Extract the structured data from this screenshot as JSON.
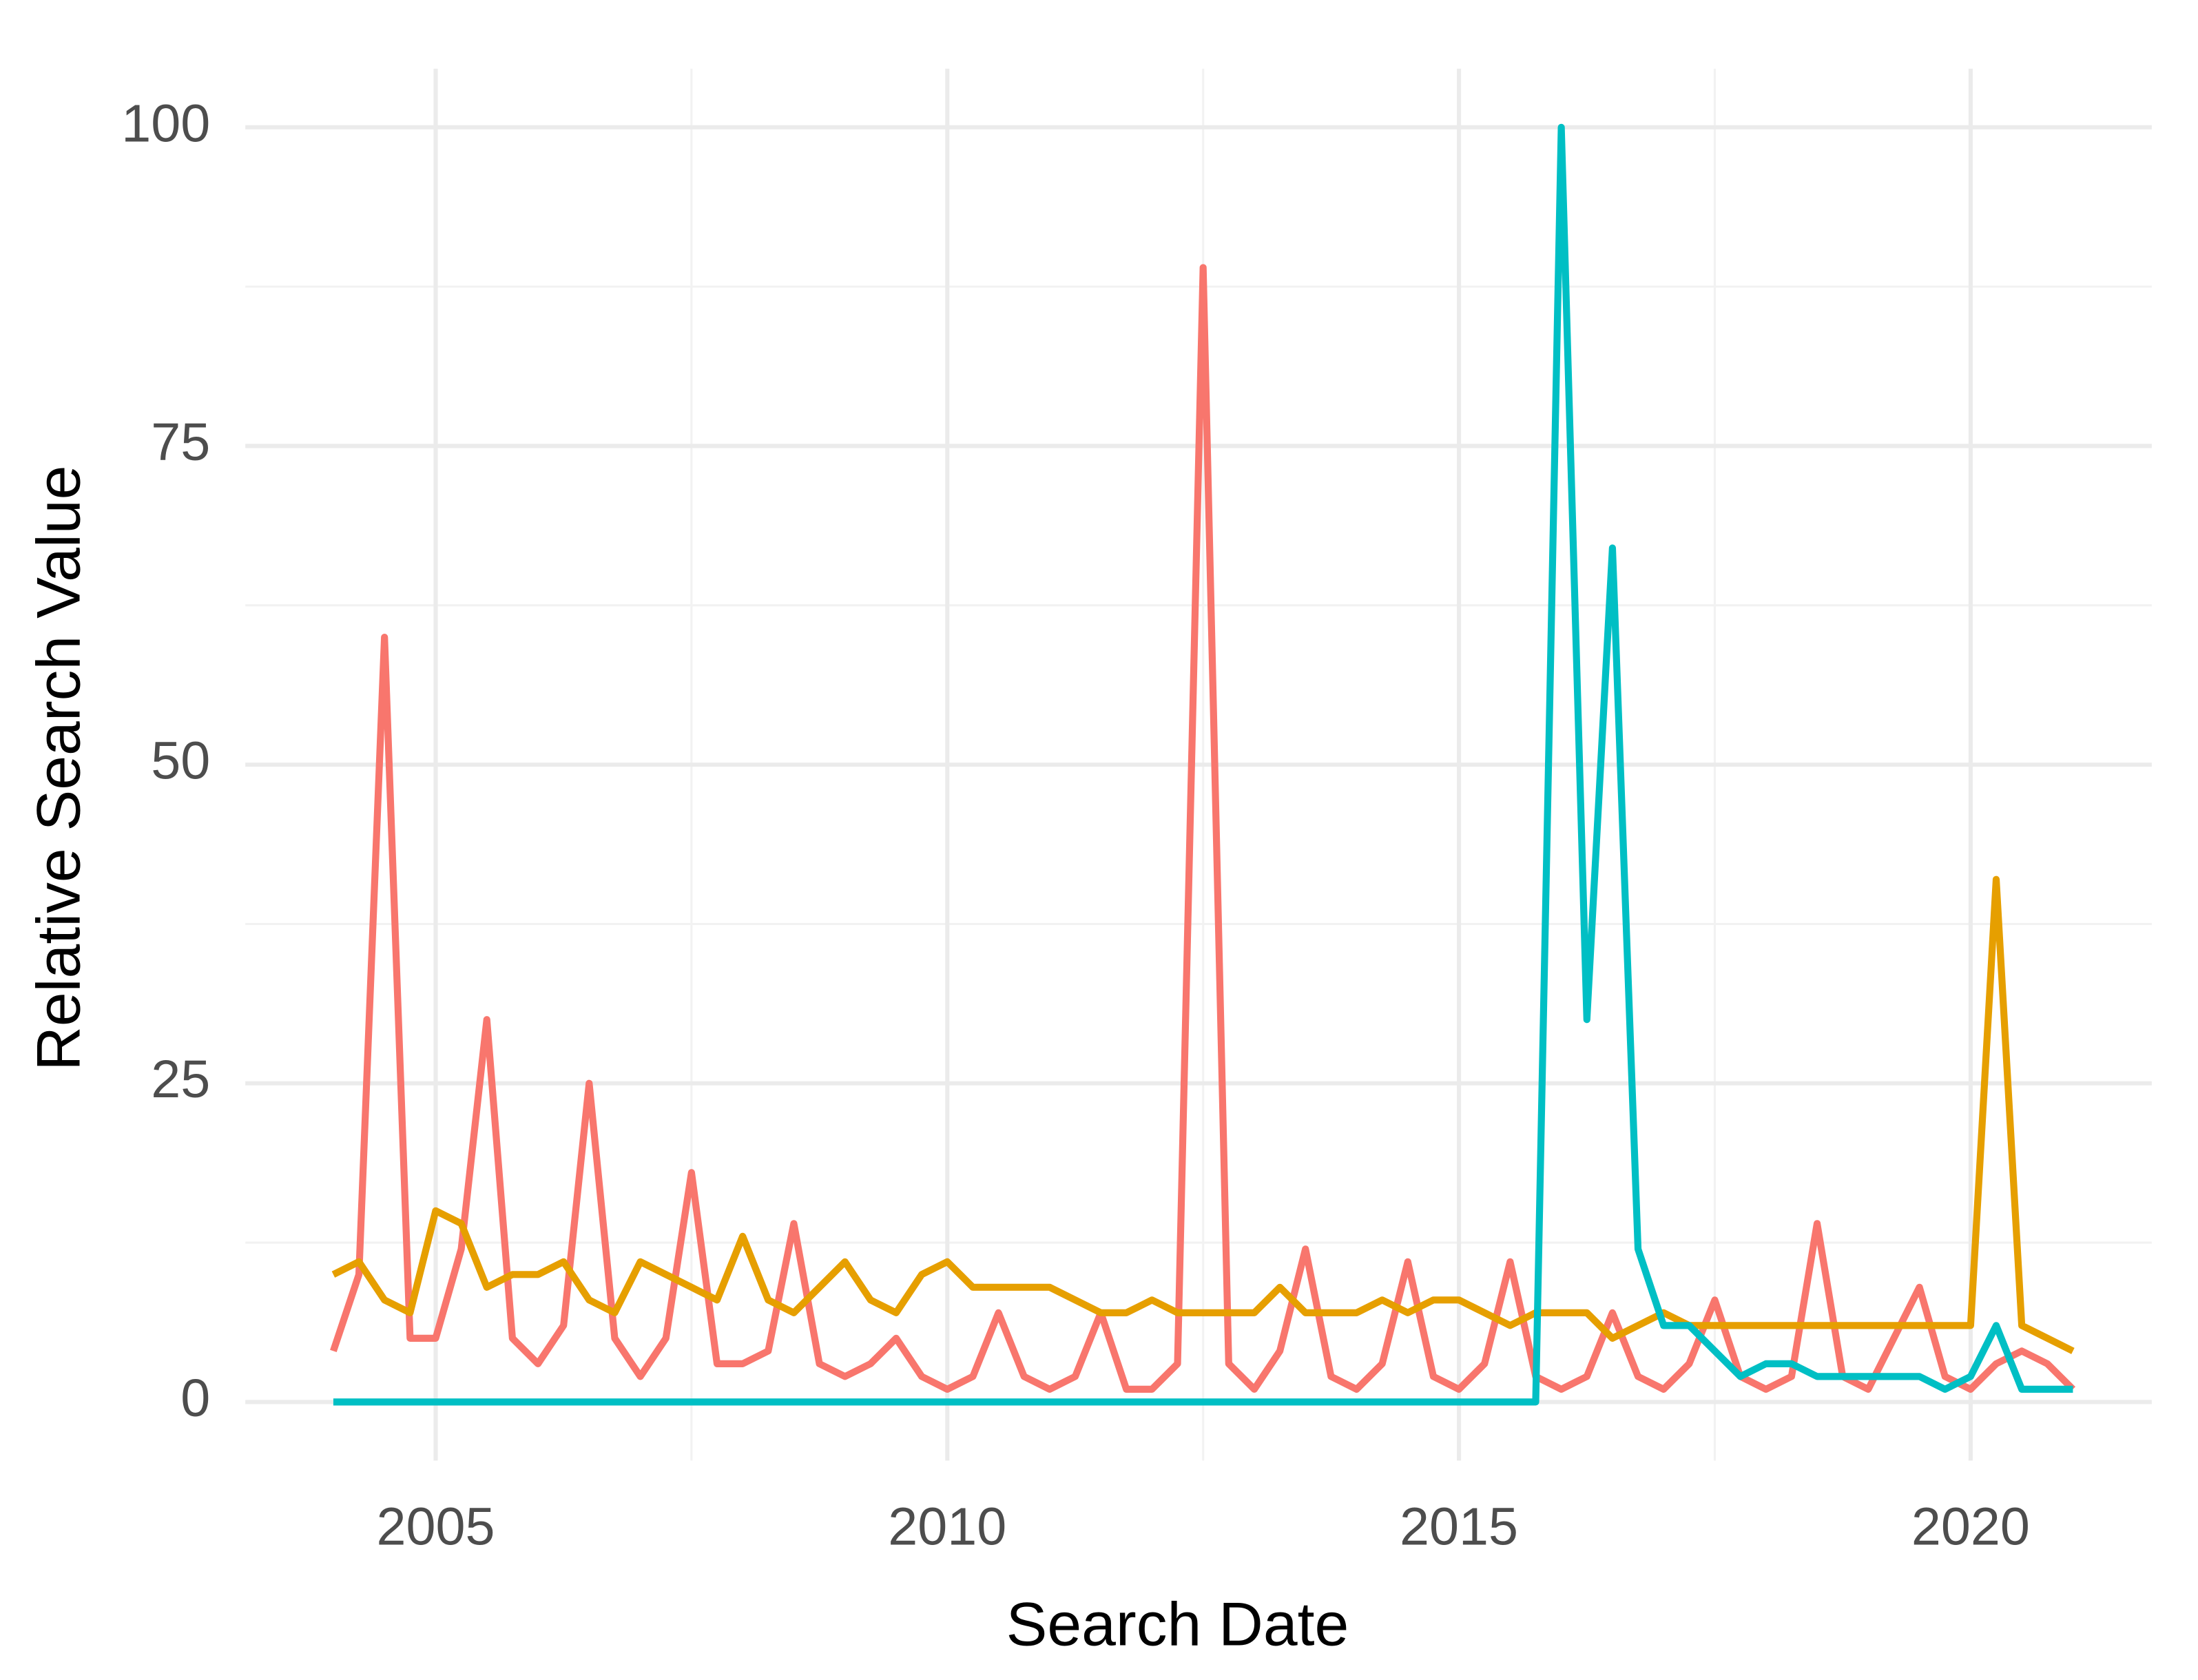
{
  "chart_data": {
    "type": "line",
    "x_label": "Search Date",
    "y_label": "Relative Search Value",
    "x": [
      2004,
      2004.25,
      2004.5,
      2004.75,
      2005,
      2005.25,
      2005.5,
      2005.75,
      2006,
      2006.25,
      2006.5,
      2006.75,
      2007,
      2007.25,
      2007.5,
      2007.75,
      2008,
      2008.25,
      2008.5,
      2008.75,
      2009,
      2009.25,
      2009.5,
      2009.75,
      2010,
      2010.25,
      2010.5,
      2010.75,
      2011,
      2011.25,
      2011.5,
      2011.75,
      2012,
      2012.25,
      2012.5,
      2012.75,
      2013,
      2013.25,
      2013.5,
      2013.75,
      2014,
      2014.25,
      2014.5,
      2014.75,
      2015,
      2015.25,
      2015.5,
      2015.75,
      2016,
      2016.25,
      2016.5,
      2016.75,
      2017,
      2017.25,
      2017.5,
      2017.75,
      2018,
      2018.25,
      2018.5,
      2018.75,
      2019,
      2019.25,
      2019.5,
      2019.75,
      2020,
      2020.25,
      2020.5,
      2020.75,
      2021
    ],
    "series": [
      {
        "color": "#f8766d",
        "values": [
          4,
          10,
          60,
          5,
          5,
          12,
          30,
          5,
          3,
          6,
          25,
          5,
          2,
          5,
          18,
          3,
          3,
          4,
          14,
          3,
          2,
          3,
          5,
          2,
          1,
          2,
          7,
          2,
          1,
          2,
          7,
          1,
          1,
          3,
          89,
          3,
          1,
          4,
          12,
          2,
          1,
          3,
          11,
          2,
          1,
          3,
          11,
          2,
          1,
          2,
          7,
          2,
          1,
          3,
          8,
          2,
          1,
          2,
          14,
          2,
          1,
          5,
          9,
          2,
          1,
          3,
          4,
          3,
          1
        ]
      },
      {
        "color": "#e69f00",
        "values": [
          10,
          11,
          8,
          7,
          15,
          14,
          9,
          10,
          10,
          11,
          8,
          7,
          11,
          10,
          9,
          8,
          13,
          8,
          7,
          9,
          11,
          8,
          7,
          10,
          11,
          9,
          9,
          9,
          9,
          8,
          7,
          7,
          8,
          7,
          7,
          7,
          7,
          9,
          7,
          7,
          7,
          8,
          7,
          8,
          8,
          7,
          6,
          7,
          7,
          7,
          5,
          6,
          7,
          6,
          6,
          6,
          6,
          6,
          6,
          6,
          6,
          6,
          6,
          6,
          6,
          41,
          6,
          5,
          4
        ]
      },
      {
        "color": "#00bfc4",
        "values": [
          0,
          0,
          0,
          0,
          0,
          0,
          0,
          0,
          0,
          0,
          0,
          0,
          0,
          0,
          0,
          0,
          0,
          0,
          0,
          0,
          0,
          0,
          0,
          0,
          0,
          0,
          0,
          0,
          0,
          0,
          0,
          0,
          0,
          0,
          0,
          0,
          0,
          0,
          0,
          0,
          0,
          0,
          0,
          0,
          0,
          0,
          0,
          0,
          100,
          30,
          67,
          12,
          6,
          6,
          4,
          2,
          3,
          3,
          2,
          2,
          2,
          2,
          2,
          1,
          2,
          6,
          1,
          1,
          1
        ]
      }
    ],
    "xlim": [
      2003.14,
      2021.77
    ],
    "xticks": [
      2005,
      2010,
      2015,
      2020
    ],
    "xminor": [
      2007.5,
      2012.5,
      2017.5
    ],
    "ylim": [
      -4.6,
      104.6
    ],
    "yticks": [
      0,
      25,
      50,
      75,
      100
    ],
    "yminor": [
      12.5,
      37.5,
      62.5,
      87.5
    ],
    "grid": true
  }
}
